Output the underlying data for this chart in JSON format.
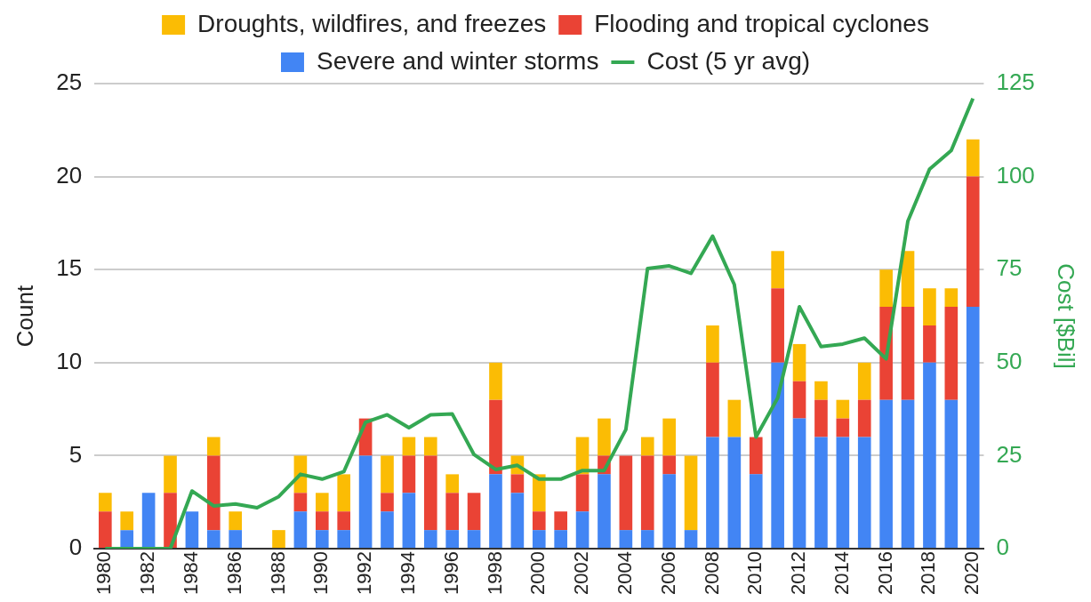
{
  "chart_data": {
    "type": "bar",
    "stacked": true,
    "ylabel": "Count",
    "y2label": "Cost [$Bil]",
    "categories": [
      "1980",
      null,
      "1982",
      null,
      "1984",
      null,
      "1986",
      null,
      "1988",
      null,
      "1990",
      null,
      "1992",
      null,
      "1994",
      null,
      "1996",
      null,
      "1998",
      null,
      "2000",
      null,
      "2002",
      null,
      "2004",
      null,
      "2006",
      null,
      "2008",
      null,
      "2010",
      null,
      "2012",
      null,
      "2014",
      null,
      "2016",
      null,
      "2018",
      null,
      "2020"
    ],
    "series": [
      {
        "name": "Severe and winter storms",
        "color": "#4285f4",
        "values": [
          0,
          1,
          3,
          0,
          2,
          1,
          1,
          0,
          0,
          2,
          1,
          1,
          5,
          2,
          3,
          1,
          1,
          1,
          4,
          3,
          1,
          1,
          2,
          4,
          1,
          1,
          4,
          1,
          6,
          6,
          4,
          10,
          7,
          6,
          6,
          6,
          8,
          8,
          10,
          8,
          13
        ]
      },
      {
        "name": "Flooding and tropical cyclones",
        "color": "#ea4335",
        "values": [
          2,
          0,
          0,
          3,
          0,
          4,
          0,
          0,
          0,
          1,
          1,
          1,
          2,
          1,
          2,
          4,
          2,
          2,
          4,
          1,
          1,
          1,
          2,
          1,
          4,
          4,
          1,
          0,
          4,
          0,
          2,
          4,
          2,
          2,
          1,
          2,
          5,
          5,
          2,
          5,
          7
        ]
      },
      {
        "name": "Droughts, wildfires, and freezes",
        "color": "#fbbc04",
        "values": [
          1,
          1,
          0,
          2,
          0,
          1,
          1,
          0,
          1,
          2,
          1,
          2,
          0,
          2,
          1,
          1,
          1,
          0,
          2,
          1,
          2,
          0,
          2,
          2,
          0,
          1,
          2,
          4,
          2,
          2,
          0,
          2,
          2,
          1,
          1,
          2,
          2,
          3,
          2,
          1,
          2
        ]
      },
      {
        "name": "Cost (5 yr avg)",
        "type": "line",
        "axis": "y2",
        "color": "#34a853",
        "values": [
          0,
          0,
          0,
          0,
          15.5,
          11.5,
          12,
          11,
          14,
          20,
          18.7,
          20.7,
          34,
          36,
          32.5,
          36,
          36.2,
          25.3,
          21.3,
          22.4,
          18.7,
          18.7,
          21,
          21,
          32,
          75.3,
          76,
          74,
          84,
          71,
          30,
          40.5,
          65,
          54.3,
          55,
          56.6,
          51,
          88,
          102,
          107,
          121
        ]
      }
    ],
    "ylim": [
      0,
      25
    ],
    "yticks": [
      0,
      5,
      10,
      15,
      20,
      25
    ],
    "y2lim": [
      0,
      125
    ],
    "y2ticks": [
      0,
      25,
      50,
      75,
      100,
      125
    ],
    "grid": "y",
    "legend": "top",
    "marker": "none",
    "line_style": "solid"
  }
}
